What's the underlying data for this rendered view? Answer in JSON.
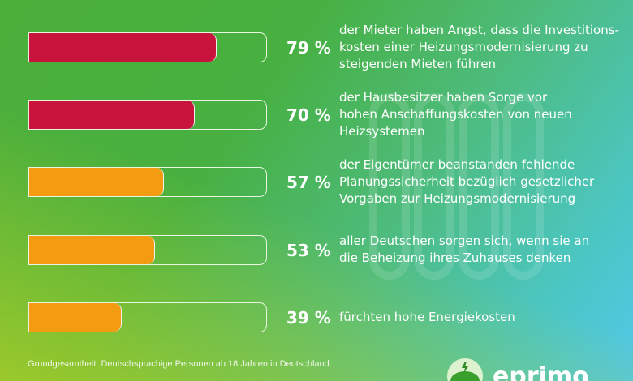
{
  "colors": {
    "high": "#c8143c",
    "mid": "#f39c12"
  },
  "chart_data": {
    "type": "bar",
    "categories": [
      "der Mieter haben Angst, dass die Investitions-kosten einer Heizungsmodernisierung zu steigenden Mieten führen",
      "der Hausbesitzer haben Sorge vor hohen Anschaffungskosten von neuen Heizsystemen",
      "der Eigentümer beanstanden fehlende Planungssicherheit bezüglich gesetzlicher Vorgaben zur Heizungsmodernisierung",
      "aller Deutschen sorgen sich, wenn sie an die Beheizung ihres Zuhauses denken",
      "fürchten hohe Energiekosten"
    ],
    "values": [
      79,
      70,
      57,
      53,
      39
    ],
    "value_labels": [
      "79 %",
      "70 %",
      "57 %",
      "53 %",
      "39 %"
    ],
    "ylim": [
      0,
      100
    ],
    "bar_colors": [
      "#c8143c",
      "#c8143c",
      "#f39c12",
      "#f39c12",
      "#f39c12"
    ],
    "lines": [
      [
        "der Mieter haben Angst, dass die Investitions-",
        "kosten einer Heizungsmodernisierung zu",
        "steigenden Mieten führen"
      ],
      [
        "der Hausbesitzer haben Sorge vor",
        "hohen Anschaffungskosten von neuen",
        "Heizsystemen"
      ],
      [
        "der Eigentümer beanstanden fehlende",
        "Planungssicherheit bezüglich gesetzlicher",
        "Vorgaben zur Heizungsmodernisierung"
      ],
      [
        "aller Deutschen sorgen sich, wenn sie an",
        "die Beheizung ihres Zuhauses denken"
      ],
      [
        "fürchten hohe Energiekosten"
      ]
    ]
  },
  "footer": "Grundgesamtheit: Deutschsprachige Personen ab 18 Jahren in Deutschland.",
  "logo": "eprimo"
}
